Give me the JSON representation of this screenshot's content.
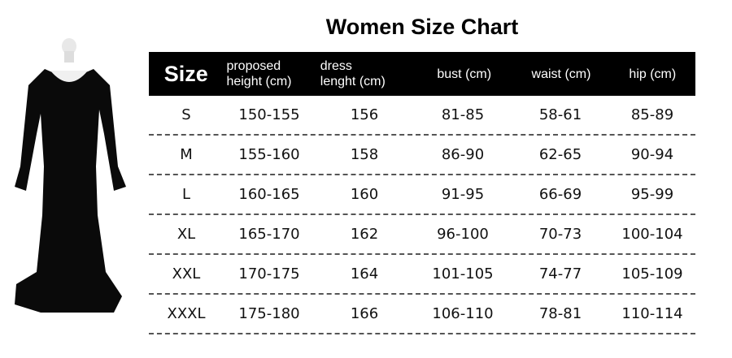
{
  "title": "Women Size Chart",
  "headers": [
    "Size",
    "proposed height (cm)",
    "dress lenght (cm)",
    "bust (cm)",
    "waist (cm)",
    "hip (cm)"
  ],
  "header_lines": [
    [
      "Size"
    ],
    [
      "proposed",
      "height (cm)"
    ],
    [
      "dress",
      "lenght (cm)"
    ],
    [
      "bust (cm)"
    ],
    [
      "waist (cm)"
    ],
    [
      "hip (cm)"
    ]
  ],
  "rows": [
    [
      "S",
      "150-155",
      "156",
      "81-85",
      "58-61",
      "85-89"
    ],
    [
      "M",
      "155-160",
      "158",
      "86-90",
      "62-65",
      "90-94"
    ],
    [
      "L",
      "160-165",
      "160",
      "91-95",
      "66-69",
      "95-99"
    ],
    [
      "XL",
      "165-170",
      "162",
      "96-100",
      "70-73",
      "100-104"
    ],
    [
      "XXL",
      "170-175",
      "164",
      "101-105",
      "74-77",
      "105-109"
    ],
    [
      "XXXL",
      "175-180",
      "166",
      "106-110",
      "78-81",
      "110-114"
    ]
  ],
  "colors": {
    "header_bg": "#000000",
    "header_text": "#ffffff",
    "dress": "#0a0a0a"
  }
}
